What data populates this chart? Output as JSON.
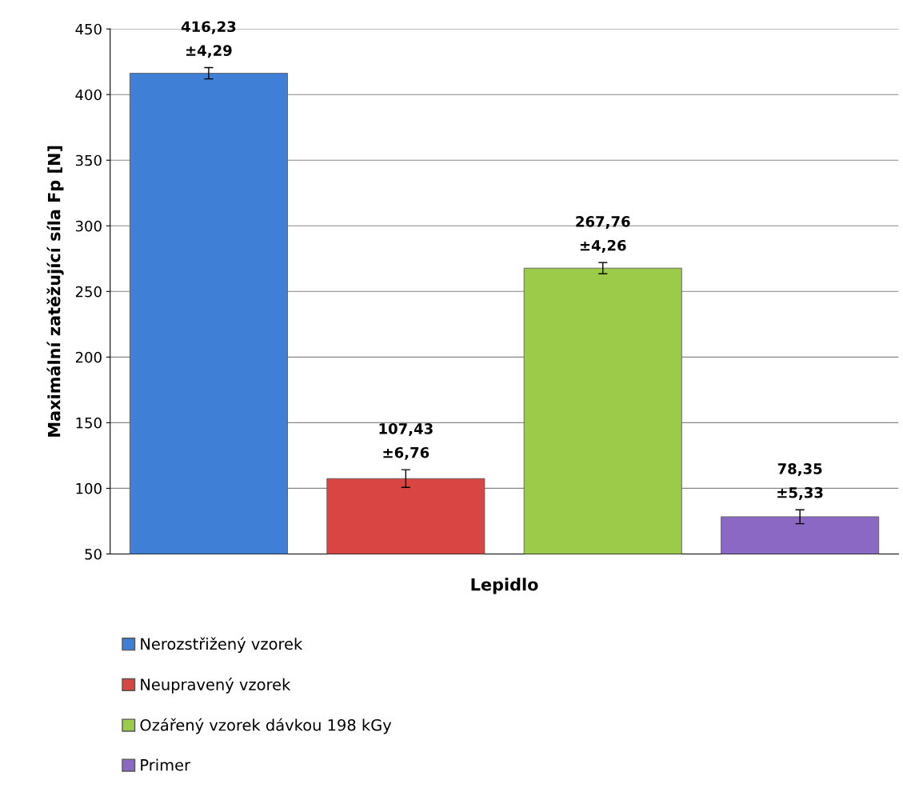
{
  "chart_data": {
    "type": "bar",
    "xlabel": "Lepidlo",
    "ylabel": "Maximální zatěžující síla Fp [N]",
    "categories": [
      null,
      null,
      null,
      null
    ],
    "series": [
      {
        "name": "Nerozstřižený vzorek",
        "color": "#3f7fd6",
        "values": [
          416.23,
          null,
          null,
          null
        ],
        "errors": [
          4.29,
          null,
          null,
          null
        ],
        "value_labels": [
          "416,23\n±4,29",
          null,
          null,
          null
        ]
      },
      {
        "name": "Neupravený vzorek",
        "color": "#d94543",
        "values": [
          null,
          107.43,
          null,
          null
        ],
        "errors": [
          null,
          6.76,
          null,
          null
        ],
        "value_labels": [
          null,
          "107,43\n±6,76",
          null,
          null
        ]
      },
      {
        "name": "Ozářený vzorek dávkou 198 kGy",
        "color": "#9ccb4a",
        "values": [
          null,
          null,
          267.76,
          null
        ],
        "errors": [
          null,
          null,
          4.26,
          null
        ],
        "value_labels": [
          null,
          null,
          "267,76\n±4,26",
          null
        ]
      },
      {
        "name": "Primer",
        "color": "#8b68c4",
        "values": [
          null,
          null,
          null,
          78.35
        ],
        "errors": [
          null,
          null,
          null,
          5.33
        ],
        "value_labels": [
          null,
          null,
          null,
          "78,35\n±5,33"
        ]
      }
    ],
    "ylim": [
      50,
      450
    ],
    "yticks": [
      50,
      100,
      150,
      200,
      250,
      300,
      350,
      400,
      450
    ],
    "grid": "y",
    "legend": "bottom"
  }
}
